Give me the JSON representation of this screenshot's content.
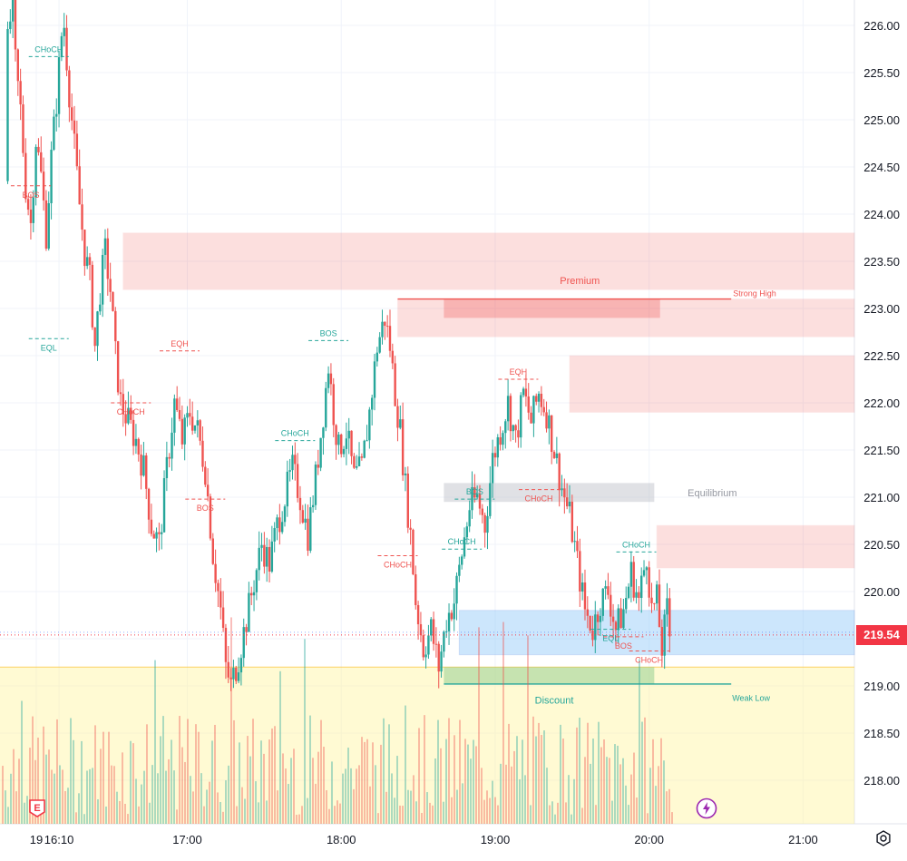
{
  "theme": {
    "up_color": "#26a69a",
    "down_color": "#ef5350",
    "grid_color": "#f0f3fa",
    "axis_text_color": "#131722",
    "premium_zone": "#ef5350",
    "discount_zone": "#fff59d",
    "equilibrium_zone": "#b2b5be",
    "demand_zone": "#90caf9",
    "price_tag_color": "#f23645"
  },
  "chart_data": {
    "type": "candlestick",
    "instrument_timeframe": "1m",
    "y_ticks": [
      "226.00",
      "225.50",
      "225.00",
      "224.50",
      "224.00",
      "223.50",
      "223.00",
      "222.50",
      "222.00",
      "221.50",
      "221.00",
      "220.50",
      "220.00",
      "219.50",
      "219.00",
      "218.50",
      "218.00"
    ],
    "y_range": [
      217.6,
      226.2
    ],
    "x_ticks": [
      "19",
      "16:10",
      "17:00",
      "18:00",
      "19:00",
      "20:00",
      "21:00"
    ],
    "x_range": [
      "15:47",
      "21:20"
    ],
    "last_price": "219.54",
    "price_path": [
      [
        "15:50",
        224.35
      ],
      [
        "15:51",
        225.8
      ],
      [
        "15:53",
        226.3
      ],
      [
        "15:54",
        225.6
      ],
      [
        "15:56",
        225.1
      ],
      [
        "15:58",
        224.3
      ],
      [
        "16:00",
        223.9
      ],
      [
        "16:02",
        224.8
      ],
      [
        "16:04",
        224.4
      ],
      [
        "16:06",
        223.8
      ],
      [
        "16:08",
        224.6
      ],
      [
        "16:10",
        225.2
      ],
      [
        "16:12",
        225.9
      ],
      [
        "16:13",
        226.0
      ],
      [
        "16:15",
        225.3
      ],
      [
        "16:17",
        224.7
      ],
      [
        "16:19",
        224.1
      ],
      [
        "16:21",
        223.6
      ],
      [
        "16:23",
        223.3
      ],
      [
        "16:25",
        222.6
      ],
      [
        "16:27",
        223.2
      ],
      [
        "16:29",
        223.6
      ],
      [
        "16:31",
        223.2
      ],
      [
        "16:33",
        222.5
      ],
      [
        "16:35",
        222.0
      ],
      [
        "16:38",
        221.8
      ],
      [
        "16:41",
        221.6
      ],
      [
        "16:44",
        221.3
      ],
      [
        "16:47",
        220.7
      ],
      [
        "16:50",
        220.5
      ],
      [
        "16:53",
        221.3
      ],
      [
        "16:56",
        222.0
      ],
      [
        "16:59",
        221.6
      ],
      [
        "17:02",
        221.9
      ],
      [
        "17:05",
        221.7
      ],
      [
        "17:08",
        221.3
      ],
      [
        "17:11",
        220.4
      ],
      [
        "17:14",
        219.8
      ],
      [
        "17:16",
        219.2
      ],
      [
        "17:18",
        219.0
      ],
      [
        "17:21",
        219.3
      ],
      [
        "17:24",
        219.7
      ],
      [
        "17:27",
        220.1
      ],
      [
        "17:30",
        220.5
      ],
      [
        "17:33",
        220.3
      ],
      [
        "17:36",
        220.7
      ],
      [
        "17:39",
        221.0
      ],
      [
        "17:42",
        221.3
      ],
      [
        "17:45",
        221.0
      ],
      [
        "17:48",
        220.6
      ],
      [
        "17:51",
        221.2
      ],
      [
        "17:54",
        221.9
      ],
      [
        "17:56",
        222.4
      ],
      [
        "17:58",
        221.9
      ],
      [
        "18:00",
        221.5
      ],
      [
        "18:03",
        221.7
      ],
      [
        "18:06",
        221.2
      ],
      [
        "18:09",
        221.3
      ],
      [
        "18:12",
        221.9
      ],
      [
        "18:15",
        222.6
      ],
      [
        "18:18",
        222.9
      ],
      [
        "18:20",
        222.6
      ],
      [
        "18:22",
        222.1
      ],
      [
        "18:24",
        221.7
      ],
      [
        "18:26",
        221.1
      ],
      [
        "18:28",
        220.6
      ],
      [
        "18:30",
        219.9
      ],
      [
        "18:33",
        219.4
      ],
      [
        "18:36",
        219.6
      ],
      [
        "18:39",
        219.2
      ],
      [
        "18:42",
        219.7
      ],
      [
        "18:45",
        219.9
      ],
      [
        "18:48",
        220.4
      ],
      [
        "18:51",
        220.9
      ],
      [
        "18:54",
        221.0
      ],
      [
        "18:57",
        220.7
      ],
      [
        "19:00",
        221.4
      ],
      [
        "19:03",
        221.7
      ],
      [
        "19:06",
        222.0
      ],
      [
        "19:09",
        221.6
      ],
      [
        "19:12",
        222.1
      ],
      [
        "19:15",
        221.8
      ],
      [
        "19:18",
        222.1
      ],
      [
        "19:21",
        221.9
      ],
      [
        "19:24",
        221.5
      ],
      [
        "19:27",
        221.1
      ],
      [
        "19:30",
        220.8
      ],
      [
        "19:33",
        220.3
      ],
      [
        "19:36",
        219.8
      ],
      [
        "19:39",
        219.6
      ],
      [
        "19:42",
        219.9
      ],
      [
        "19:45",
        220.0
      ],
      [
        "19:48",
        219.6
      ],
      [
        "19:51",
        219.8
      ],
      [
        "19:54",
        220.2
      ],
      [
        "19:57",
        219.9
      ],
      [
        "20:00",
        220.4
      ],
      [
        "20:02",
        219.8
      ],
      [
        "20:04",
        219.9
      ],
      [
        "20:06",
        219.4
      ],
      [
        "20:08",
        219.8
      ],
      [
        "20:09",
        219.54
      ]
    ],
    "annotations": [
      {
        "text": "BOS",
        "time": "15:59",
        "price": 224.3,
        "color": "down"
      },
      {
        "text": "CHoCH",
        "time": "16:06",
        "price": 225.67,
        "color": "up"
      },
      {
        "text": "EQL",
        "time": "16:06",
        "price": 222.68,
        "color": "up"
      },
      {
        "text": "CHoCH",
        "time": "16:38",
        "price": 222.0,
        "color": "down"
      },
      {
        "text": "EQH",
        "time": "16:57",
        "price": 222.55,
        "color": "down"
      },
      {
        "text": "BOS",
        "time": "17:07",
        "price": 220.98,
        "color": "down"
      },
      {
        "text": "BOS",
        "time": "17:55",
        "price": 222.66,
        "color": "up"
      },
      {
        "text": "CHoCH",
        "time": "17:42",
        "price": 221.6,
        "color": "up"
      },
      {
        "text": "CHoCH",
        "time": "18:22",
        "price": 220.38,
        "color": "down"
      },
      {
        "text": "BOS",
        "time": "18:52",
        "price": 220.98,
        "color": "up"
      },
      {
        "text": "CHoCH",
        "time": "18:47",
        "price": 220.45,
        "color": "up"
      },
      {
        "text": "EQH",
        "time": "19:09",
        "price": 222.25,
        "color": "down"
      },
      {
        "text": "CHoCH",
        "time": "19:17",
        "price": 221.08,
        "color": "down"
      },
      {
        "text": "CHoCH",
        "time": "19:55",
        "price": 220.42,
        "color": "up"
      },
      {
        "text": "EQL",
        "time": "19:45",
        "price": 219.6,
        "color": "up"
      },
      {
        "text": "BOS",
        "time": "19:50",
        "price": 219.52,
        "color": "down"
      },
      {
        "text": "CHoCH",
        "time": "20:00",
        "price": 219.37,
        "color": "down"
      }
    ],
    "zones": [
      {
        "label": "Premium",
        "from": "16:35",
        "price_top": 223.8,
        "price_bottom": 223.2
      },
      {
        "label": "Equilibrium",
        "from": "18:40",
        "price_top": 221.15,
        "price_bottom": 220.95
      },
      {
        "label": "Discount",
        "from": "15:47",
        "price_top": 219.2,
        "price_bottom": 217.6
      }
    ],
    "labels": {
      "premium": "Premium",
      "equilibrium": "Equilibrium",
      "discount": "Discount",
      "strong_high": "Strong High",
      "weak_low": "Weak Low"
    }
  },
  "markers": {
    "earnings_letter": "E",
    "flash_icon": "lightning-icon",
    "settings_icon": "gear-icon"
  }
}
